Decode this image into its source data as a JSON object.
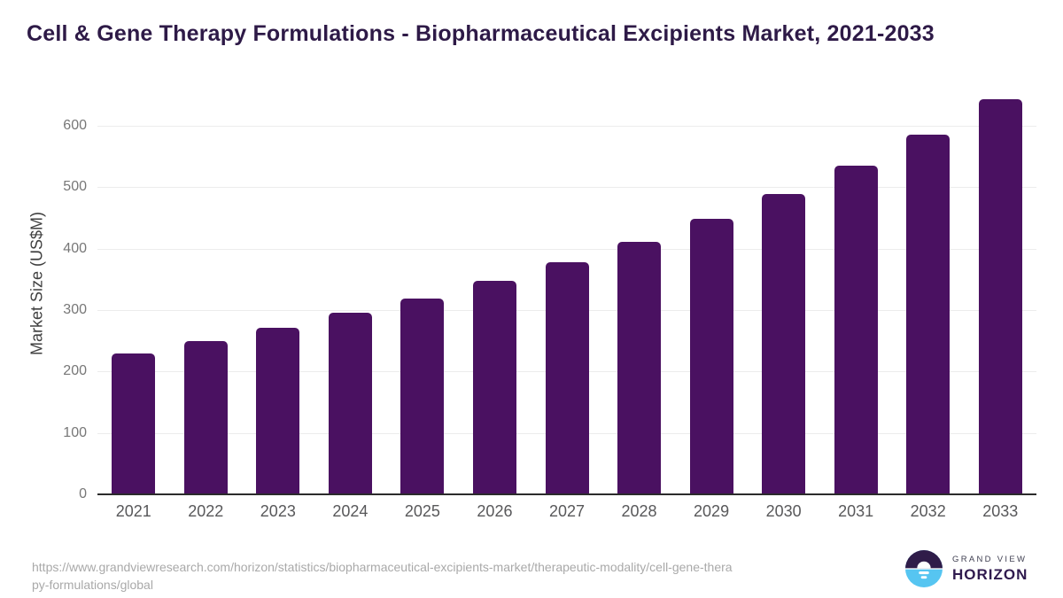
{
  "header": {
    "title": "Cell & Gene Therapy Formulations - Biopharmaceutical Excipients Market, 2021-2033"
  },
  "chart_data": {
    "type": "bar",
    "title": "Cell & Gene Therapy Formulations - Biopharmaceutical Excipients Market, 2021-2033",
    "categories": [
      "2021",
      "2022",
      "2023",
      "2024",
      "2025",
      "2026",
      "2027",
      "2028",
      "2029",
      "2030",
      "2031",
      "2032",
      "2033"
    ],
    "values": [
      230,
      250,
      271,
      295,
      319,
      348,
      378,
      411,
      449,
      489,
      535,
      586,
      643
    ],
    "xlabel": "",
    "ylabel": "Market Size (US$M)",
    "yticks": [
      0,
      100,
      200,
      300,
      400,
      500,
      600
    ],
    "ylim": [
      0,
      660
    ],
    "grid": true,
    "legend_position": "none",
    "bar_color": "#4a1161"
  },
  "footer": {
    "source_url_line1": "https://www.grandviewresearch.com/horizon/statistics/biopharmaceutical-excipients-market/therapeutic-modality/cell-gene-thera",
    "source_url_line2": "py-formulations/global",
    "logo": {
      "icon": "horizon-sun-icon",
      "top_text": "GRAND VIEW",
      "bottom_text": "HORIZON",
      "icon_top_color": "#2f1c49",
      "icon_bottom_color": "#56c5f1",
      "wordmark_color": "#2f1a4e"
    }
  },
  "colors": {
    "bar": "#4a1161",
    "title": "#2e1a47",
    "axis_line": "#2b2b2b",
    "gridline": "#ececec",
    "y_tick_label": "#777777",
    "x_tick_label": "#58585a",
    "source_text": "#a9a9a9"
  }
}
